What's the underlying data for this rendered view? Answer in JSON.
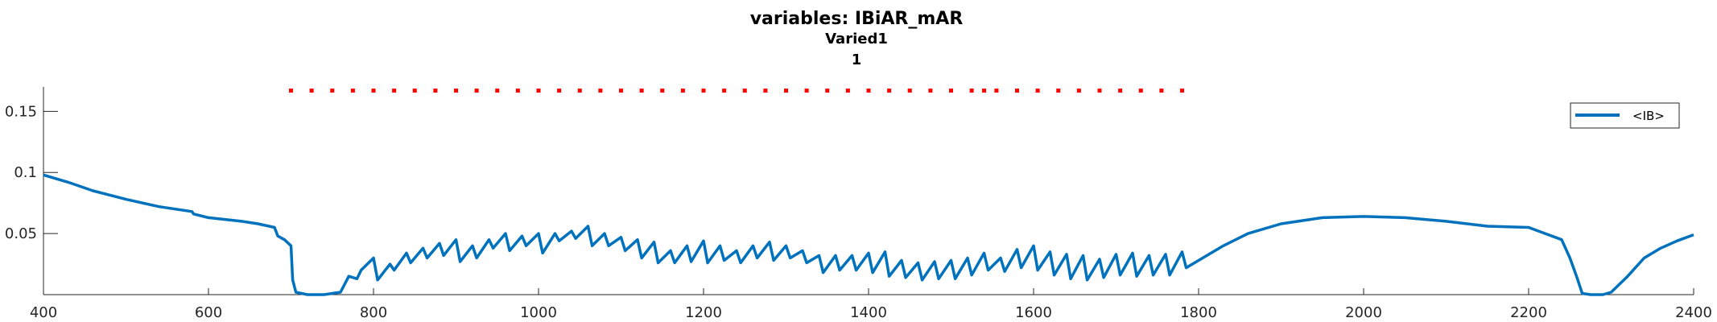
{
  "chart_data": {
    "type": "line",
    "title": "variables: IBiAR_mAR",
    "subtitle_lines": [
      "Varied1",
      "1"
    ],
    "xlabel": "",
    "ylabel": "",
    "xlim": [
      400,
      2400
    ],
    "ylim": [
      0,
      0.17
    ],
    "xticks": [
      400,
      600,
      800,
      1000,
      1200,
      1400,
      1600,
      1800,
      2000,
      2200,
      2400
    ],
    "xtick_labels": [
      "400",
      "600",
      "800",
      "1000",
      "1200",
      "1400",
      "1600",
      "1800",
      "2000",
      "2200",
      "2400"
    ],
    "yticks": [
      0.05,
      0.1,
      0.15
    ],
    "ytick_labels": [
      "0.05",
      "0.1",
      "0.15"
    ],
    "grid": false,
    "legend": {
      "entries": [
        "<IB>"
      ],
      "location": "top-right"
    },
    "colors": {
      "series": "#0072BD",
      "markers": "#FF0000",
      "axes": "#262626"
    },
    "series": [
      {
        "name": "<IB>",
        "x": [
          400,
          430,
          460,
          500,
          540,
          580,
          582,
          600,
          640,
          660,
          680,
          684,
          692,
          700,
          702,
          706,
          720,
          740,
          760,
          770,
          780,
          785,
          800,
          805,
          820,
          825,
          840,
          845,
          860,
          865,
          880,
          885,
          900,
          905,
          920,
          925,
          940,
          945,
          960,
          965,
          980,
          985,
          1000,
          1005,
          1020,
          1025,
          1040,
          1045,
          1060,
          1065,
          1080,
          1085,
          1100,
          1105,
          1120,
          1125,
          1140,
          1145,
          1160,
          1165,
          1180,
          1185,
          1200,
          1205,
          1220,
          1225,
          1240,
          1245,
          1260,
          1265,
          1280,
          1285,
          1300,
          1305,
          1320,
          1325,
          1340,
          1345,
          1360,
          1365,
          1380,
          1385,
          1400,
          1405,
          1420,
          1425,
          1440,
          1445,
          1460,
          1465,
          1480,
          1485,
          1500,
          1505,
          1520,
          1525,
          1540,
          1545,
          1560,
          1565,
          1580,
          1585,
          1600,
          1605,
          1620,
          1625,
          1640,
          1645,
          1660,
          1665,
          1680,
          1685,
          1700,
          1705,
          1720,
          1725,
          1740,
          1745,
          1760,
          1765,
          1780,
          1785,
          1800,
          1830,
          1860,
          1900,
          1950,
          2000,
          2050,
          2100,
          2150,
          2200,
          2220,
          2240,
          2250,
          2258,
          2265,
          2275,
          2290,
          2300,
          2320,
          2340,
          2360,
          2380,
          2400
        ],
        "y": [
          0.098,
          0.092,
          0.085,
          0.078,
          0.072,
          0.068,
          0.066,
          0.063,
          0.06,
          0.058,
          0.055,
          0.048,
          0.045,
          0.04,
          0.012,
          0.002,
          0,
          0,
          0.002,
          0.015,
          0.013,
          0.02,
          0.03,
          0.012,
          0.025,
          0.02,
          0.034,
          0.026,
          0.038,
          0.03,
          0.042,
          0.032,
          0.045,
          0.027,
          0.04,
          0.03,
          0.045,
          0.038,
          0.05,
          0.036,
          0.048,
          0.04,
          0.05,
          0.034,
          0.05,
          0.044,
          0.052,
          0.046,
          0.056,
          0.04,
          0.05,
          0.04,
          0.047,
          0.036,
          0.045,
          0.03,
          0.043,
          0.026,
          0.036,
          0.026,
          0.04,
          0.027,
          0.044,
          0.026,
          0.04,
          0.028,
          0.036,
          0.026,
          0.04,
          0.03,
          0.043,
          0.028,
          0.04,
          0.03,
          0.036,
          0.026,
          0.032,
          0.018,
          0.032,
          0.02,
          0.032,
          0.02,
          0.034,
          0.018,
          0.035,
          0.015,
          0.028,
          0.014,
          0.026,
          0.012,
          0.027,
          0.013,
          0.028,
          0.013,
          0.03,
          0.016,
          0.034,
          0.02,
          0.03,
          0.019,
          0.037,
          0.022,
          0.04,
          0.02,
          0.035,
          0.016,
          0.033,
          0.013,
          0.032,
          0.012,
          0.029,
          0.014,
          0.033,
          0.016,
          0.034,
          0.015,
          0.032,
          0.016,
          0.033,
          0.016,
          0.035,
          0.022,
          0.028,
          0.04,
          0.05,
          0.058,
          0.063,
          0.064,
          0.063,
          0.06,
          0.056,
          0.055,
          0.05,
          0.045,
          0.03,
          0.015,
          0.001,
          0,
          0,
          0.002,
          0.015,
          0.03,
          0.038,
          0.044,
          0.049
        ]
      },
      {
        "name": "",
        "marker_only": true,
        "x": [
          700,
          725,
          750,
          775,
          800,
          825,
          850,
          875,
          900,
          925,
          950,
          975,
          1000,
          1025,
          1050,
          1075,
          1100,
          1125,
          1150,
          1175,
          1200,
          1225,
          1250,
          1275,
          1300,
          1325,
          1350,
          1375,
          1400,
          1425,
          1450,
          1475,
          1500,
          1525,
          1540,
          1555,
          1580,
          1605,
          1630,
          1655,
          1680,
          1705,
          1730,
          1755,
          1780
        ],
        "y": [
          0.167,
          0.167,
          0.167,
          0.167,
          0.167,
          0.167,
          0.167,
          0.167,
          0.167,
          0.167,
          0.167,
          0.167,
          0.167,
          0.167,
          0.167,
          0.167,
          0.167,
          0.167,
          0.167,
          0.167,
          0.167,
          0.167,
          0.167,
          0.167,
          0.167,
          0.167,
          0.167,
          0.167,
          0.167,
          0.167,
          0.167,
          0.167,
          0.167,
          0.167,
          0.167,
          0.167,
          0.167,
          0.167,
          0.167,
          0.167,
          0.167,
          0.167,
          0.167,
          0.167,
          0.167
        ]
      }
    ]
  }
}
